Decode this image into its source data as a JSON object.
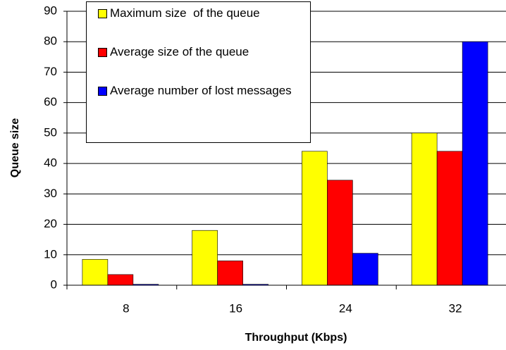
{
  "chart_data": {
    "type": "bar",
    "x_label": "Throughput (Kbps)",
    "y_label": "Queue size",
    "categories": [
      "8",
      "16",
      "24",
      "32"
    ],
    "series": [
      {
        "name": "Maximum size  of the queue",
        "color": "#ffff00",
        "values": [
          8.5,
          18,
          44,
          50
        ]
      },
      {
        "name": "Average size of the queue",
        "color": "#ff0000",
        "values": [
          3.5,
          8,
          34.5,
          44
        ]
      },
      {
        "name": "Average number of lost messages",
        "color": "#0000ff",
        "values": [
          0.3,
          0.3,
          10.5,
          80
        ]
      }
    ],
    "ylim": [
      0,
      90
    ],
    "yticks": [
      0,
      10,
      20,
      30,
      40,
      50,
      60,
      70,
      80,
      90
    ],
    "grid": true,
    "legend": "upper left"
  }
}
